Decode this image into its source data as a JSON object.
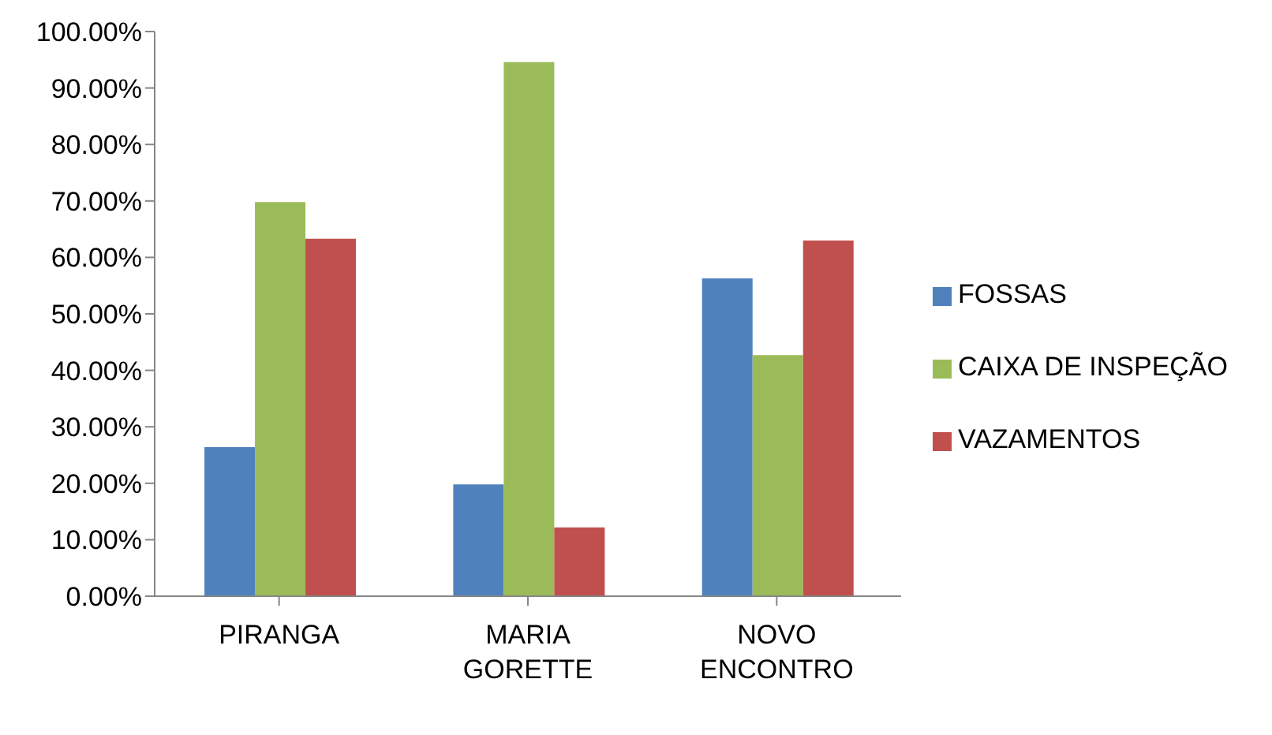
{
  "chart_data": {
    "type": "bar",
    "categories": [
      "PIRANGA",
      "MARIA GORETTE",
      "NOVO ENCONTRO"
    ],
    "series": [
      {
        "name": "FOSSAS",
        "color": "#4f81bd",
        "values": [
          26.4,
          19.8,
          56.3
        ]
      },
      {
        "name": "CAIXA DE INSPEÇÃO",
        "color": "#9bbb59",
        "values": [
          69.8,
          94.6,
          42.7
        ]
      },
      {
        "name": "VAZAMENTOS",
        "color": "#c0504d",
        "values": [
          63.3,
          12.2,
          63.0
        ]
      }
    ],
    "ylim": [
      0,
      100
    ],
    "yticks": [
      {
        "value": 0,
        "label": "0.00%"
      },
      {
        "value": 10,
        "label": "10.00%"
      },
      {
        "value": 20,
        "label": "20.00%"
      },
      {
        "value": 30,
        "label": "30.00%"
      },
      {
        "value": 40,
        "label": "40.00%"
      },
      {
        "value": 50,
        "label": "50.00%"
      },
      {
        "value": 60,
        "label": "60.00%"
      },
      {
        "value": 70,
        "label": "70.00%"
      },
      {
        "value": 80,
        "label": "80.00%"
      },
      {
        "value": 90,
        "label": "90.00%"
      },
      {
        "value": 100,
        "label": "100.00%"
      }
    ],
    "grid": false,
    "legend": "right"
  }
}
